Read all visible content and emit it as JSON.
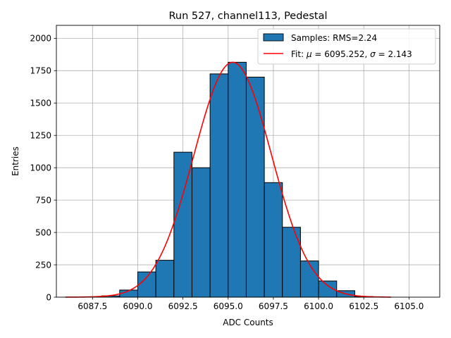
{
  "chart_data": {
    "type": "bar",
    "title": "Run 527, channel113, Pedestal",
    "xlabel": "ADC Counts",
    "ylabel": "Entries",
    "xlim": [
      6085.5,
      6106.7
    ],
    "ylim": [
      0,
      2100
    ],
    "grid": true,
    "legend_position": "top-right",
    "x_ticks": [
      6087.5,
      6090.0,
      6092.5,
      6095.0,
      6097.5,
      6100.0,
      6102.5,
      6105.0
    ],
    "x_tick_labels": [
      "6087.5",
      "6090.0",
      "6092.5",
      "6095.0",
      "6097.5",
      "6100.0",
      "6102.5",
      "6105.0"
    ],
    "y_ticks": [
      0,
      250,
      500,
      750,
      1000,
      1250,
      1500,
      1750,
      2000
    ],
    "y_tick_labels": [
      "0",
      "250",
      "500",
      "750",
      "1000",
      "1250",
      "1500",
      "1750",
      "2000"
    ],
    "bin_edges": [
      6086,
      6087,
      6088,
      6089,
      6090,
      6091,
      6092,
      6093,
      6094,
      6095,
      6096,
      6097,
      6098,
      6099,
      6100,
      6101,
      6102,
      6103,
      6104,
      6105,
      6106
    ],
    "counts": [
      0,
      3,
      10,
      55,
      195,
      285,
      1120,
      1000,
      1725,
      1815,
      1700,
      885,
      540,
      280,
      125,
      50,
      5,
      0,
      0,
      0
    ],
    "bar_color": "#1f77b4",
    "edge_color": "#000000",
    "fit": {
      "mu": 6095.252,
      "sigma": 2.143,
      "amplitude": 1815,
      "x_range": [
        6086,
        6104
      ],
      "color": "#ff0000"
    },
    "legend": [
      {
        "type": "patch",
        "label": "Samples: RMS=2.24",
        "color": "#1f77b4"
      },
      {
        "type": "line",
        "label_prefix": "Fit: ",
        "mu_symbol": "μ",
        "mu_text": " = 6095.252, ",
        "sigma_symbol": "σ",
        "sigma_text": " = 2.143",
        "color": "#ff0000"
      }
    ]
  }
}
